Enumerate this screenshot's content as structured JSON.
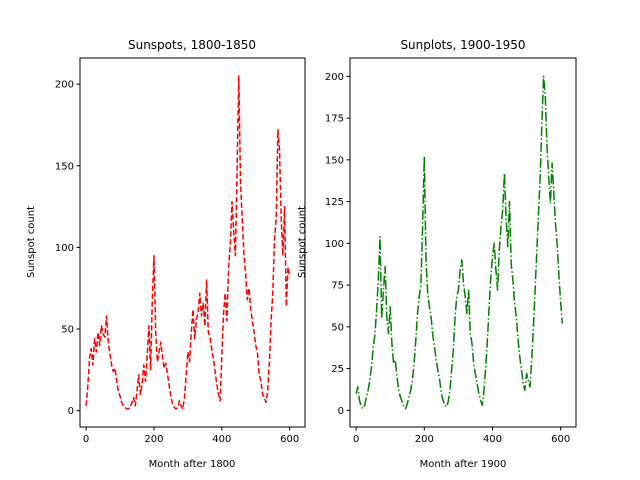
{
  "chart_data": [
    {
      "type": "line",
      "title": "Sunspots, 1800-1850",
      "xlabel": "Month after 1800",
      "ylabel": "Sunspot count",
      "xlim": [
        -18,
        645
      ],
      "ylim": [
        -10,
        216
      ],
      "xticks": [
        0,
        200,
        400,
        600
      ],
      "yticks": [
        0,
        50,
        100,
        150,
        200
      ],
      "grid": false,
      "series": [
        {
          "color": "#ff0000",
          "linestyle": "dashed",
          "x": [
            0,
            5,
            10,
            15,
            20,
            25,
            30,
            35,
            40,
            45,
            50,
            55,
            60,
            65,
            70,
            75,
            80,
            85,
            90,
            95,
            100,
            105,
            110,
            115,
            120,
            125,
            130,
            135,
            140,
            145,
            150,
            155,
            160,
            165,
            170,
            175,
            180,
            185,
            190,
            195,
            200,
            205,
            210,
            215,
            220,
            225,
            230,
            235,
            240,
            245,
            250,
            255,
            260,
            265,
            270,
            275,
            280,
            285,
            290,
            295,
            300,
            305,
            310,
            315,
            320,
            325,
            330,
            335,
            340,
            345,
            350,
            355,
            360,
            365,
            370,
            375,
            380,
            385,
            390,
            395,
            400,
            405,
            410,
            415,
            420,
            425,
            430,
            435,
            440,
            445,
            450,
            455,
            460,
            465,
            470,
            475,
            480,
            485,
            490,
            495,
            500,
            505,
            510,
            515,
            520,
            525,
            530,
            535,
            540,
            545,
            550,
            555,
            560,
            565,
            570,
            575,
            580,
            585,
            590,
            595,
            600
          ],
          "y": [
            3,
            15,
            32,
            38,
            28,
            44,
            36,
            48,
            40,
            52,
            47,
            45,
            58,
            42,
            35,
            28,
            24,
            26,
            18,
            12,
            9,
            5,
            3,
            2,
            1,
            1,
            2,
            5,
            8,
            3,
            12,
            22,
            10,
            16,
            28,
            18,
            34,
            52,
            25,
            68,
            95,
            48,
            30,
            36,
            42,
            33,
            26,
            29,
            22,
            15,
            8,
            4,
            2,
            1,
            2,
            6,
            3,
            1,
            8,
            22,
            36,
            30,
            48,
            62,
            44,
            56,
            60,
            72,
            58,
            66,
            52,
            80,
            48,
            45,
            38,
            32,
            24,
            16,
            10,
            6,
            35,
            60,
            72,
            55,
            88,
            102,
            128,
            110,
            95,
            148,
            205,
            140,
            118,
            96,
            84,
            68,
            75,
            62,
            55,
            48,
            40,
            35,
            22,
            18,
            10,
            8,
            5,
            12,
            30,
            55,
            72,
            105,
            118,
            172,
            160,
            118,
            95,
            125,
            64,
            88,
            82
          ]
        }
      ]
    },
    {
      "type": "line",
      "title": "Sunplots, 1900-1950",
      "xlabel": "Month after 1900",
      "ylabel": "Sunspot count",
      "xlim": [
        -18,
        645
      ],
      "ylim": [
        -10,
        211
      ],
      "xticks": [
        0,
        200,
        400,
        600
      ],
      "yticks": [
        0,
        25,
        50,
        75,
        100,
        125,
        150,
        175,
        200
      ],
      "grid": false,
      "series": [
        {
          "color": "#008000",
          "linestyle": "dashdot",
          "x": [
            0,
            5,
            10,
            15,
            20,
            25,
            30,
            35,
            40,
            45,
            50,
            55,
            60,
            65,
            70,
            75,
            80,
            85,
            90,
            95,
            100,
            105,
            110,
            115,
            120,
            125,
            130,
            135,
            140,
            145,
            150,
            155,
            160,
            165,
            170,
            175,
            180,
            185,
            190,
            195,
            200,
            205,
            210,
            215,
            220,
            225,
            230,
            235,
            240,
            245,
            250,
            255,
            260,
            265,
            270,
            275,
            280,
            285,
            290,
            295,
            300,
            305,
            310,
            315,
            320,
            325,
            330,
            335,
            340,
            345,
            350,
            355,
            360,
            365,
            370,
            375,
            380,
            385,
            390,
            395,
            400,
            405,
            410,
            415,
            420,
            425,
            430,
            435,
            440,
            445,
            450,
            455,
            460,
            465,
            470,
            475,
            480,
            485,
            490,
            495,
            500,
            505,
            510,
            515,
            520,
            525,
            530,
            535,
            540,
            545,
            550,
            555,
            560,
            565,
            570,
            575,
            580,
            585,
            590,
            595,
            600,
            605
          ],
          "y": [
            10,
            14,
            6,
            2,
            1,
            3,
            8,
            12,
            18,
            26,
            38,
            45,
            60,
            78,
            104,
            55,
            72,
            86,
            56,
            46,
            62,
            40,
            28,
            30,
            20,
            12,
            8,
            5,
            2,
            1,
            4,
            8,
            12,
            18,
            28,
            42,
            58,
            68,
            75,
            110,
            152,
            90,
            70,
            62,
            56,
            45,
            38,
            30,
            24,
            18,
            10,
            6,
            3,
            2,
            5,
            12,
            24,
            36,
            55,
            68,
            72,
            84,
            90,
            76,
            68,
            58,
            72,
            46,
            40,
            28,
            22,
            16,
            10,
            6,
            3,
            12,
            26,
            42,
            62,
            80,
            92,
            100,
            84,
            72,
            96,
            110,
            120,
            142,
            115,
            98,
            125,
            88,
            78,
            64,
            56,
            42,
            32,
            24,
            16,
            12,
            22,
            18,
            14,
            30,
            50,
            72,
            95,
            118,
            140,
            172,
            200,
            188,
            158,
            140,
            124,
            148,
            130,
            112,
            98,
            80,
            64,
            52
          ]
        }
      ]
    }
  ]
}
